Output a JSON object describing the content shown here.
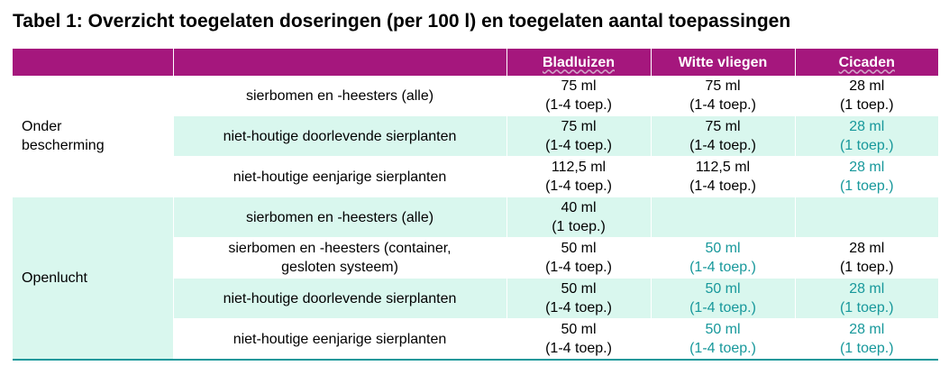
{
  "title": "Tabel 1: Overzicht toegelaten doseringen (per 100 l) en toegelaten aantal toepassingen",
  "headers": [
    "",
    "",
    "Bladluizen",
    "Witte vliegen",
    "Cicaden"
  ],
  "groups": [
    {
      "label_lines": [
        "Onder",
        "bescherming"
      ],
      "rows": [
        {
          "crop_lines": [
            "sierbomen en -heesters (alle)"
          ],
          "bladluizen": [
            "75 ml",
            "(1-4 toep.)"
          ],
          "witte_vliegen": [
            "75 ml",
            "(1-4 toep.)"
          ],
          "cicaden": [
            "28 ml",
            "(1 toep.)"
          ]
        },
        {
          "crop_lines": [
            "niet-houtige doorlevende sierplanten"
          ],
          "bladluizen": [
            "75 ml",
            "(1-4 toep.)"
          ],
          "witte_vliegen": [
            "75 ml",
            "(1-4 toep.)"
          ],
          "cicaden": [
            "28 ml",
            "(1 toep.)"
          ]
        },
        {
          "crop_lines": [
            "niet-houtige eenjarige sierplanten"
          ],
          "bladluizen": [
            "112,5 ml",
            "(1-4 toep.)"
          ],
          "witte_vliegen": [
            "112,5 ml",
            "(1-4 toep.)"
          ],
          "cicaden": [
            "28 ml",
            "(1 toep.)"
          ]
        }
      ]
    },
    {
      "label_lines": [
        "Openlucht"
      ],
      "rows": [
        {
          "crop_lines": [
            "sierbomen en -heesters (alle)"
          ],
          "bladluizen": [
            "40 ml",
            "(1 toep.)"
          ],
          "witte_vliegen": [
            "",
            ""
          ],
          "cicaden": [
            "",
            ""
          ]
        },
        {
          "crop_lines": [
            "sierbomen en -heesters (container,",
            "gesloten systeem)"
          ],
          "bladluizen": [
            "50 ml",
            "(1-4 toep.)"
          ],
          "witte_vliegen": [
            "50 ml",
            "(1-4 toep.)"
          ],
          "cicaden": [
            "28 ml",
            "(1 toep.)"
          ]
        },
        {
          "crop_lines": [
            "niet-houtige doorlevende sierplanten"
          ],
          "bladluizen": [
            "50 ml",
            "(1-4 toep.)"
          ],
          "witte_vliegen": [
            "50 ml",
            "(1-4 toep.)"
          ],
          "cicaden": [
            "28 ml",
            "(1 toep.)"
          ]
        },
        {
          "crop_lines": [
            "niet-houtige eenjarige sierplanten"
          ],
          "bladluizen": [
            "50 ml",
            "(1-4 toep.)"
          ],
          "witte_vliegen": [
            "50 ml",
            "(1-4 toep.)"
          ],
          "cicaden": [
            "28 ml",
            "(1 toep.)"
          ]
        }
      ]
    }
  ],
  "colors": {
    "header_bg": "#a5177d",
    "row_tint": "#d9f7ee",
    "highlight_text": "#17989b"
  }
}
